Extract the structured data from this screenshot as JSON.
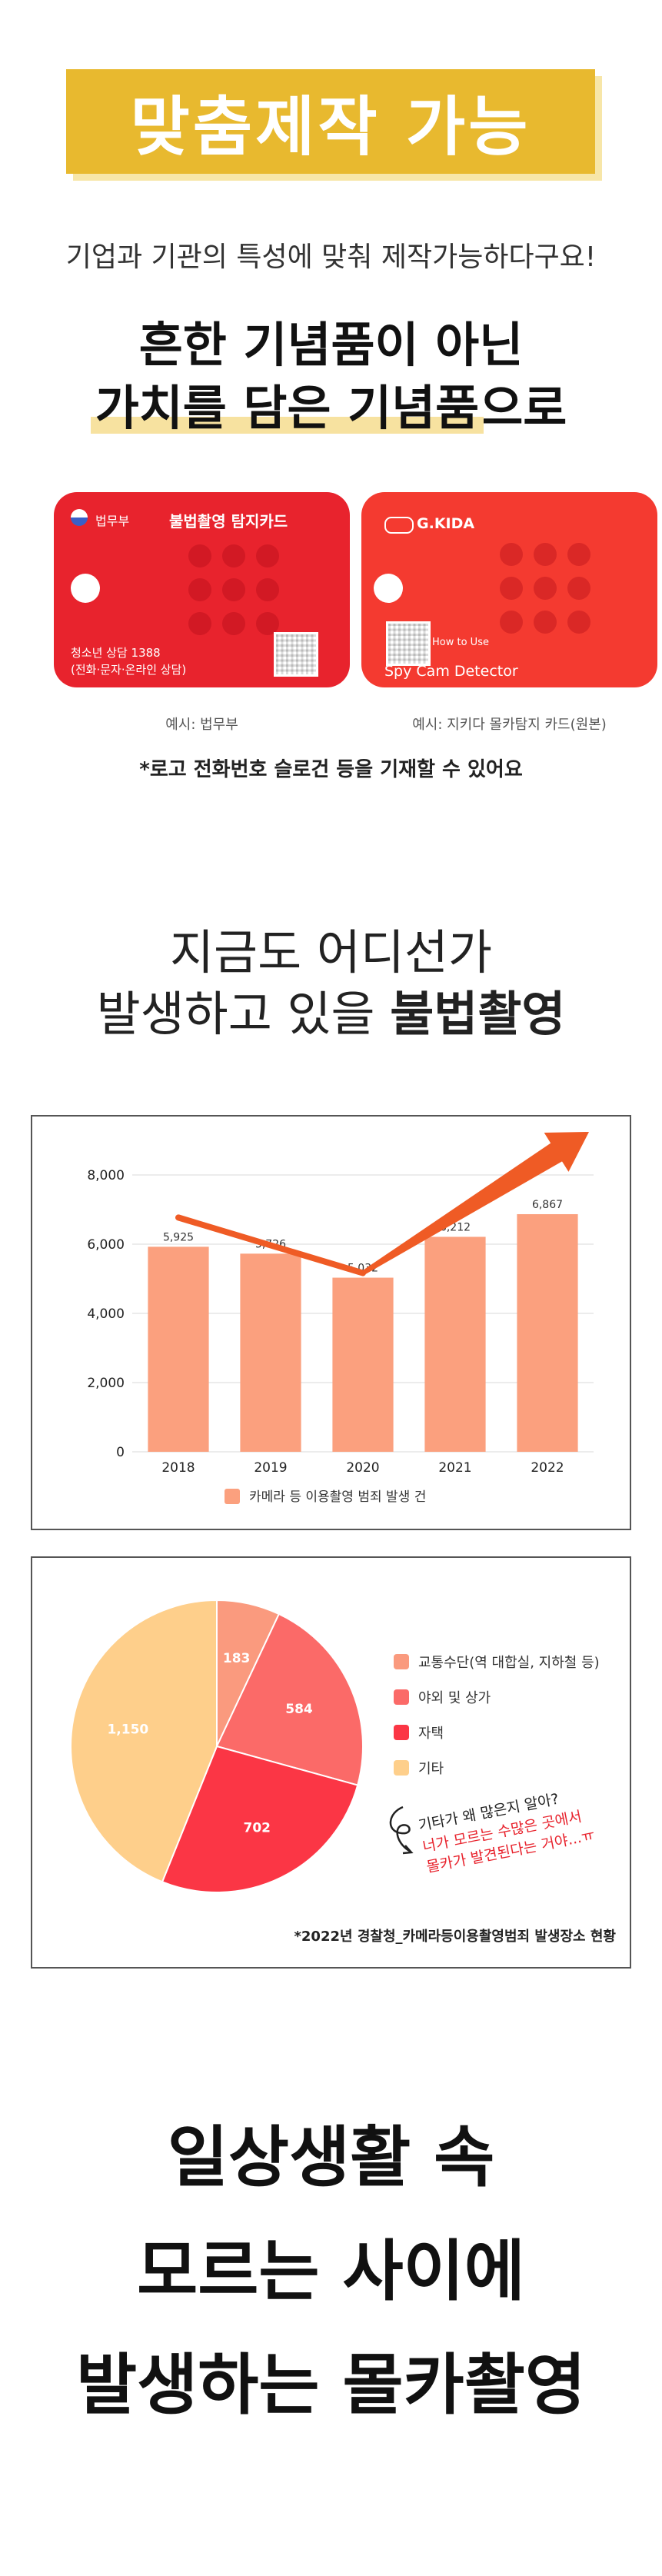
{
  "banner": {
    "title": "맞춤제작 가능"
  },
  "intro": {
    "subtitle": "기업과 기관의 특성에 맞춰 제작가능하다구요!",
    "headline_line1": "흔한 기념품이 아닌",
    "headline_line2_highlight": "가치를 담은 기념품",
    "headline_line2_rest": "으로"
  },
  "cards": [
    {
      "org": "법무부",
      "title": "불법촬영 탐지카드",
      "footer_line1": "청소년 상담 1388",
      "footer_line2": "(전화·문자·온라인 상담)",
      "caption": "예시: 법무부",
      "color": "#e8232d"
    },
    {
      "org": "G.KIDA",
      "how": "How to Use",
      "title": "Spy Cam Detector",
      "caption": "예시: 지키다 몰카탐지 카드(원본)",
      "color": "#f43a30"
    }
  ],
  "note": "*로고 전화번호 슬로건 등을 기재할 수 있어요",
  "section2": {
    "line1": "지금도 어디선가",
    "line2_normal": "발생하고 있을 ",
    "line2_bold": "불법촬영"
  },
  "chart_data": [
    {
      "type": "bar",
      "categories": [
        "2018",
        "2019",
        "2020",
        "2021",
        "2022"
      ],
      "series": [
        {
          "name": "카메라 등 이용촬영 범죄 발생 건",
          "values": [
            5925,
            5726,
            5032,
            6212,
            6867
          ],
          "labels": [
            "5,925",
            "5,726",
            "5,032",
            "6,212",
            "6,867"
          ]
        }
      ],
      "yticks": [
        "0",
        "2,000",
        "4,000",
        "6,000",
        "8,000"
      ],
      "ylim": [
        0,
        8000
      ],
      "grid": true,
      "legend": "bottom",
      "bar_color": "#fba07e",
      "arrow_color": "#ef5b25"
    },
    {
      "type": "pie",
      "slices": [
        {
          "name": "교통수단(역 대합실, 지하철 등)",
          "value": 183,
          "label": "183",
          "color": "#fa9a7e"
        },
        {
          "name": "야외 및 상가",
          "value": 584,
          "label": "584",
          "color": "#fb6a68"
        },
        {
          "name": "자택",
          "value": 702,
          "label": "702",
          "color": "#fb3645"
        },
        {
          "name": "기타",
          "value": 1150,
          "label": "1,150",
          "color": "#fecf8b"
        }
      ],
      "legend": "right",
      "annotation_line1": "기타가 왜 많은지 알아?",
      "annotation_line2": "너가 모르는 수많은 곳에서",
      "annotation_line3": "몰카가 발견된다는 거야...ㅠ",
      "source": "*2022년 경찰청_카메라등이용촬영범죄 발생장소 현황"
    }
  ],
  "final": {
    "line1": "일상생활 속",
    "line2": "모르는 사이에",
    "line3": "발생하는 몰카촬영"
  }
}
